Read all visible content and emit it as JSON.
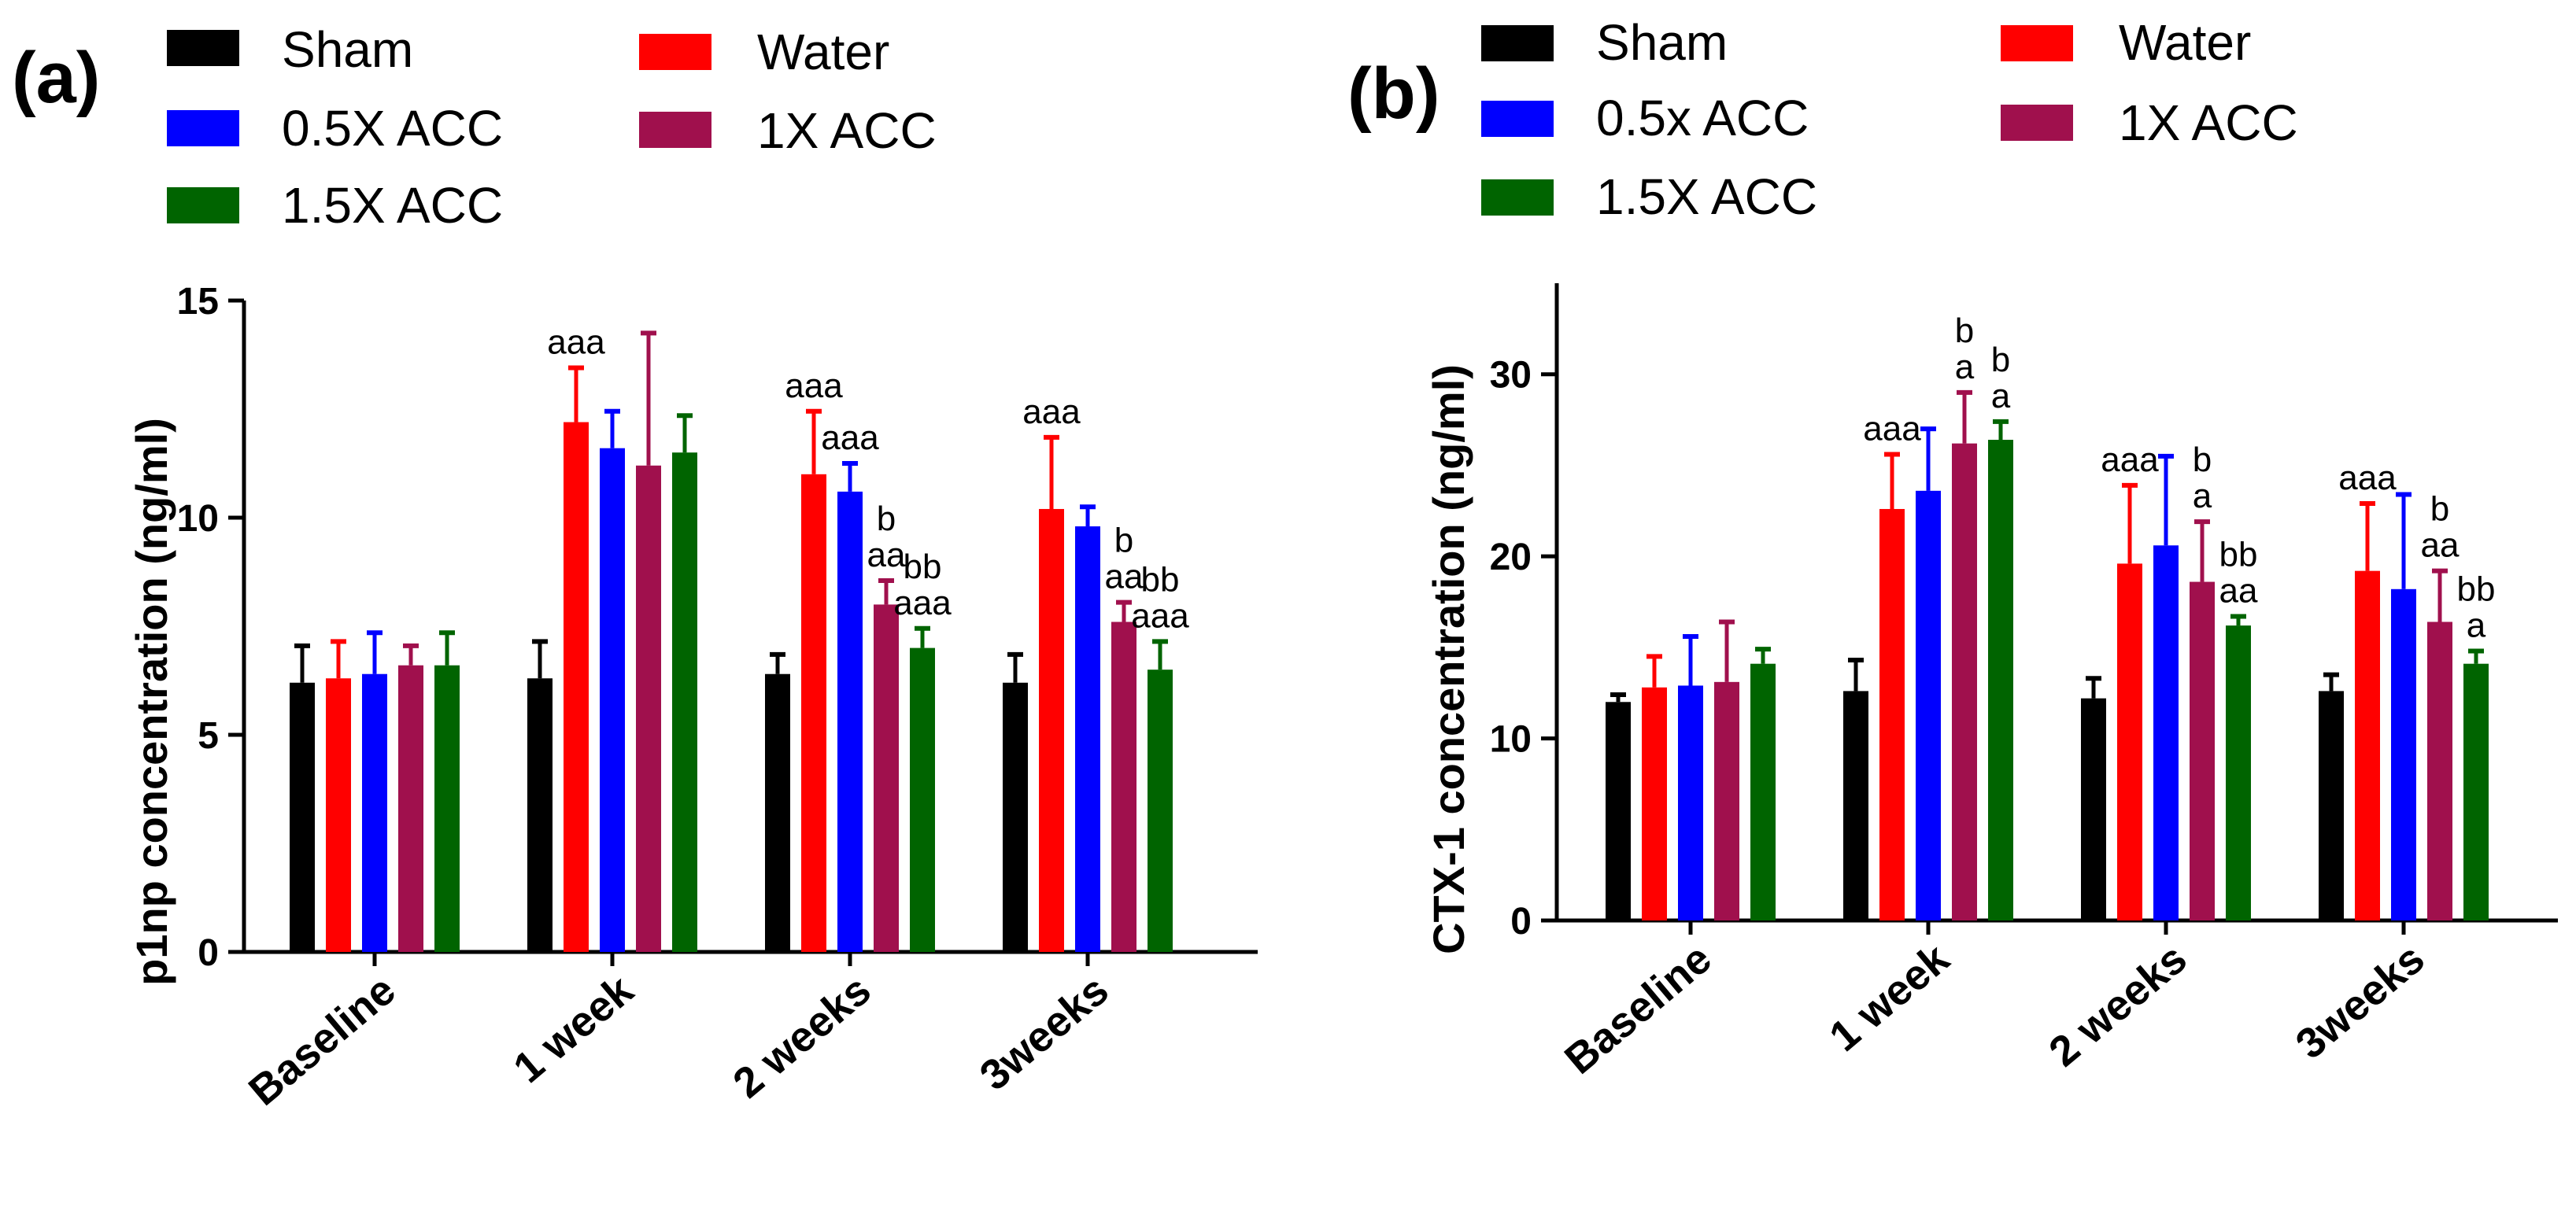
{
  "chart_data": [
    {
      "panel_label": "(a)",
      "type": "bar",
      "ylabel": "p1np  concentration (ng/ml)",
      "ylim": [
        0,
        15
      ],
      "yticks": [
        0,
        5,
        10,
        15
      ],
      "categories": [
        "Baseline",
        "1 week",
        "2 weeks",
        "3weeks"
      ],
      "legend": [
        "Sham",
        "0.5X ACC",
        "1.5X ACC",
        "Water",
        "1X ACC"
      ],
      "series": [
        {
          "name": "Sham",
          "color": "#000000",
          "values": [
            6.2,
            6.3,
            6.4,
            6.2
          ],
          "errors": [
            0.85,
            0.85,
            0.45,
            0.65
          ]
        },
        {
          "name": "Water",
          "color": "#ff0000",
          "values": [
            6.3,
            12.2,
            11.0,
            10.2
          ],
          "errors": [
            0.85,
            1.25,
            1.45,
            1.65
          ]
        },
        {
          "name": "0.5X ACC",
          "color": "#0000ff",
          "values": [
            6.4,
            11.6,
            10.6,
            9.8
          ],
          "errors": [
            0.95,
            0.85,
            0.65,
            0.45
          ]
        },
        {
          "name": "1X ACC",
          "color": "#a0104d",
          "values": [
            6.6,
            11.2,
            8.0,
            7.6
          ],
          "errors": [
            0.45,
            3.05,
            0.55,
            0.45
          ]
        },
        {
          "name": "1.5X ACC",
          "color": "#006400",
          "values": [
            6.6,
            11.5,
            7.0,
            6.5
          ],
          "errors": [
            0.75,
            0.85,
            0.45,
            0.65
          ]
        }
      ],
      "annotations": [
        {
          "category": 1,
          "series": 1,
          "lines": [
            "aaa"
          ]
        },
        {
          "category": 2,
          "series": 1,
          "lines": [
            "aaa"
          ]
        },
        {
          "category": 2,
          "series": 2,
          "lines": [
            "aaa"
          ]
        },
        {
          "category": 2,
          "series": 3,
          "lines": [
            "b",
            "aa"
          ]
        },
        {
          "category": 2,
          "series": 4,
          "lines": [
            "bb",
            "aaa"
          ]
        },
        {
          "category": 3,
          "series": 1,
          "lines": [
            "aaa"
          ]
        },
        {
          "category": 3,
          "series": 3,
          "lines": [
            "b",
            "aa"
          ]
        },
        {
          "category": 3,
          "series": 4,
          "lines": [
            "bb",
            "aaa"
          ]
        }
      ]
    },
    {
      "panel_label": "(b)",
      "type": "bar",
      "ylabel": "CTX-1 concentration (ng/ml)",
      "ylim": [
        0,
        35
      ],
      "yticks": [
        0,
        10,
        20,
        30
      ],
      "categories": [
        "Baseline",
        "1 week",
        "2 weeks",
        "3weeks"
      ],
      "legend": [
        "Sham",
        "0.5x ACC",
        "1.5X ACC",
        "Water",
        "1X ACC"
      ],
      "series": [
        {
          "name": "Sham",
          "color": "#000000",
          "values": [
            12.0,
            12.6,
            12.2,
            12.6
          ],
          "errors": [
            0.4,
            1.7,
            1.1,
            0.9
          ]
        },
        {
          "name": "Water",
          "color": "#ff0000",
          "values": [
            12.8,
            22.6,
            19.6,
            19.2
          ],
          "errors": [
            1.7,
            3.0,
            4.3,
            3.7
          ]
        },
        {
          "name": "0.5x ACC",
          "color": "#0000ff",
          "values": [
            12.9,
            23.6,
            20.6,
            18.2
          ],
          "errors": [
            2.7,
            3.4,
            4.9,
            5.2
          ]
        },
        {
          "name": "1X ACC",
          "color": "#a0104d",
          "values": [
            13.1,
            26.2,
            18.6,
            16.4
          ],
          "errors": [
            3.3,
            2.8,
            3.3,
            2.8
          ]
        },
        {
          "name": "1.5X ACC",
          "color": "#006400",
          "values": [
            14.1,
            26.4,
            16.2,
            14.1
          ],
          "errors": [
            0.8,
            1.0,
            0.5,
            0.7
          ]
        }
      ],
      "annotations": [
        {
          "category": 1,
          "series": 1,
          "lines": [
            "aaa"
          ]
        },
        {
          "category": 1,
          "series": 3,
          "lines": [
            "b",
            "a"
          ]
        },
        {
          "category": 1,
          "series": 4,
          "lines": [
            "b",
            "a"
          ]
        },
        {
          "category": 2,
          "series": 1,
          "lines": [
            "aaa"
          ]
        },
        {
          "category": 2,
          "series": 3,
          "lines": [
            "b",
            "a"
          ]
        },
        {
          "category": 2,
          "series": 4,
          "lines": [
            "bb",
            "aa"
          ]
        },
        {
          "category": 3,
          "series": 1,
          "lines": [
            "aaa"
          ]
        },
        {
          "category": 3,
          "series": 3,
          "lines": [
            "b",
            "aa"
          ]
        },
        {
          "category": 3,
          "series": 4,
          "lines": [
            "bb",
            "a"
          ]
        }
      ]
    }
  ]
}
